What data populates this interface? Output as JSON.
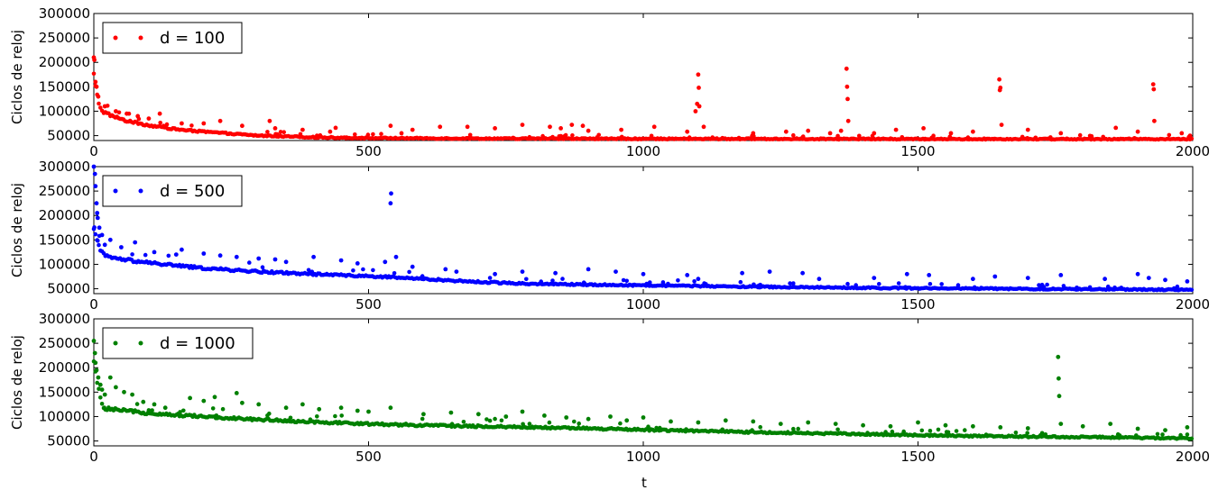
{
  "figure": {
    "xlabel": "t"
  },
  "chart_data": [
    {
      "type": "scatter",
      "ylabel": "Ciclos de reloj",
      "xlim": [
        0,
        2000
      ],
      "ylim": [
        40000,
        300000
      ],
      "xticks": [
        0,
        500,
        1000,
        1500,
        2000
      ],
      "yticks": [
        50000,
        100000,
        150000,
        200000,
        250000,
        300000
      ],
      "series": [
        {
          "name": "d = 100",
          "color": "#ff0000",
          "trend": [
            [
              0,
              175000
            ],
            [
              3,
              150000
            ],
            [
              8,
              120000
            ],
            [
              15,
              100000
            ],
            [
              30,
              92000
            ],
            [
              60,
              80000
            ],
            [
              100,
              71000
            ],
            [
              150,
              63000
            ],
            [
              200,
              58000
            ],
            [
              250,
              54000
            ],
            [
              300,
              50000
            ],
            [
              400,
              46500
            ],
            [
              500,
              45000
            ],
            [
              700,
              44000
            ],
            [
              1000,
              43500
            ],
            [
              1500,
              43000
            ],
            [
              2000,
              43000
            ]
          ],
          "outliers": [
            [
              0,
              210000
            ],
            [
              1,
              205000
            ],
            [
              3,
              160000
            ],
            [
              5,
              150000
            ],
            [
              8,
              130000
            ],
            [
              20,
              110000
            ],
            [
              40,
              100000
            ],
            [
              60,
              95000
            ],
            [
              80,
              90000
            ],
            [
              100,
              85000
            ],
            [
              120,
              95000
            ],
            [
              160,
              75000
            ],
            [
              200,
              75000
            ],
            [
              230,
              80000
            ],
            [
              270,
              70000
            ],
            [
              320,
              80000
            ],
            [
              330,
              65000
            ],
            [
              380,
              62000
            ],
            [
              430,
              58000
            ],
            [
              440,
              66000
            ],
            [
              540,
              70000
            ],
            [
              560,
              55000
            ],
            [
              580,
              62000
            ],
            [
              630,
              68000
            ],
            [
              680,
              68000
            ],
            [
              730,
              65000
            ],
            [
              780,
              72000
            ],
            [
              830,
              68000
            ],
            [
              850,
              65000
            ],
            [
              870,
              72000
            ],
            [
              890,
              70000
            ],
            [
              900,
              60000
            ],
            [
              960,
              62000
            ],
            [
              1020,
              68000
            ],
            [
              1080,
              58000
            ],
            [
              1095,
              100000
            ],
            [
              1098,
              115000
            ],
            [
              1100,
              175000
            ],
            [
              1101,
              148000
            ],
            [
              1102,
              110000
            ],
            [
              1110,
              68000
            ],
            [
              1200,
              55000
            ],
            [
              1260,
              58000
            ],
            [
              1300,
              60000
            ],
            [
              1340,
              55000
            ],
            [
              1360,
              60000
            ],
            [
              1370,
              187000
            ],
            [
              1371,
              150000
            ],
            [
              1372,
              125000
            ],
            [
              1373,
              80000
            ],
            [
              1420,
              55000
            ],
            [
              1460,
              62000
            ],
            [
              1510,
              65000
            ],
            [
              1560,
              55000
            ],
            [
              1600,
              58000
            ],
            [
              1648,
              165000
            ],
            [
              1649,
              143000
            ],
            [
              1650,
              148000
            ],
            [
              1652,
              72000
            ],
            [
              1700,
              62000
            ],
            [
              1760,
              55000
            ],
            [
              1860,
              66000
            ],
            [
              1900,
              58000
            ],
            [
              1928,
              155000
            ],
            [
              1929,
              145000
            ],
            [
              1930,
              80000
            ],
            [
              1980,
              55000
            ],
            [
              1995,
              50000
            ]
          ]
        }
      ]
    },
    {
      "type": "scatter",
      "ylabel": "Ciclos de reloj",
      "xlim": [
        0,
        2000
      ],
      "ylim": [
        40000,
        300000
      ],
      "xticks": [
        0,
        500,
        1000,
        1500,
        2000
      ],
      "yticks": [
        50000,
        100000,
        150000,
        200000,
        250000,
        300000
      ],
      "series": [
        {
          "name": "d = 500",
          "color": "#0000ff",
          "trend": [
            [
              0,
              170000
            ],
            [
              5,
              150000
            ],
            [
              12,
              130000
            ],
            [
              20,
              117000
            ],
            [
              40,
              112000
            ],
            [
              100,
              103000
            ],
            [
              200,
              92000
            ],
            [
              300,
              85000
            ],
            [
              400,
              80000
            ],
            [
              500,
              76000
            ],
            [
              600,
              70000
            ],
            [
              700,
              64000
            ],
            [
              800,
              60000
            ],
            [
              1000,
              57000
            ],
            [
              1200,
              54000
            ],
            [
              1500,
              51000
            ],
            [
              1800,
              49000
            ],
            [
              2000,
              48000
            ]
          ],
          "outliers": [
            [
              0,
              300000
            ],
            [
              2,
              285000
            ],
            [
              3,
              260000
            ],
            [
              5,
              225000
            ],
            [
              6,
              205000
            ],
            [
              7,
              195000
            ],
            [
              10,
              175000
            ],
            [
              15,
              160000
            ],
            [
              20,
              140000
            ],
            [
              30,
              150000
            ],
            [
              50,
              135000
            ],
            [
              75,
              145000
            ],
            [
              110,
              125000
            ],
            [
              150,
              120000
            ],
            [
              160,
              130000
            ],
            [
              200,
              122000
            ],
            [
              230,
              118000
            ],
            [
              260,
              115000
            ],
            [
              300,
              112000
            ],
            [
              330,
              110000
            ],
            [
              350,
              105000
            ],
            [
              400,
              115000
            ],
            [
              450,
              108000
            ],
            [
              480,
              102000
            ],
            [
              530,
              105000
            ],
            [
              540,
              225000
            ],
            [
              541,
              245000
            ],
            [
              550,
              115000
            ],
            [
              580,
              95000
            ],
            [
              640,
              90000
            ],
            [
              660,
              85000
            ],
            [
              730,
              80000
            ],
            [
              780,
              85000
            ],
            [
              840,
              82000
            ],
            [
              900,
              90000
            ],
            [
              950,
              85000
            ],
            [
              1000,
              80000
            ],
            [
              1080,
              78000
            ],
            [
              1100,
              70000
            ],
            [
              1180,
              82000
            ],
            [
              1230,
              85000
            ],
            [
              1290,
              82000
            ],
            [
              1320,
              70000
            ],
            [
              1420,
              72000
            ],
            [
              1480,
              80000
            ],
            [
              1520,
              78000
            ],
            [
              1600,
              70000
            ],
            [
              1640,
              75000
            ],
            [
              1700,
              72000
            ],
            [
              1760,
              78000
            ],
            [
              1840,
              70000
            ],
            [
              1900,
              80000
            ],
            [
              1920,
              72000
            ],
            [
              1950,
              68000
            ],
            [
              1990,
              65000
            ]
          ]
        }
      ]
    },
    {
      "type": "scatter",
      "ylabel": "Ciclos de reloj",
      "xlim": [
        0,
        2000
      ],
      "ylim": [
        40000,
        300000
      ],
      "xticks": [
        0,
        500,
        1000,
        1500,
        2000
      ],
      "yticks": [
        50000,
        100000,
        150000,
        200000,
        250000,
        300000
      ],
      "series": [
        {
          "name": "d = 1000",
          "color": "#008000",
          "trend": [
            [
              0,
              210000
            ],
            [
              4,
              185000
            ],
            [
              8,
              160000
            ],
            [
              13,
              130000
            ],
            [
              18,
              117000
            ],
            [
              40,
              114000
            ],
            [
              100,
              107000
            ],
            [
              200,
              100000
            ],
            [
              300,
              94000
            ],
            [
              400,
              89000
            ],
            [
              500,
              85000
            ],
            [
              600,
              82000
            ],
            [
              800,
              78000
            ],
            [
              1000,
              73000
            ],
            [
              1200,
              68000
            ],
            [
              1400,
              64000
            ],
            [
              1600,
              60000
            ],
            [
              1800,
              58000
            ],
            [
              2000,
              55000
            ]
          ],
          "outliers": [
            [
              0,
              255000
            ],
            [
              2,
              230000
            ],
            [
              3,
              210000
            ],
            [
              5,
              195000
            ],
            [
              8,
              180000
            ],
            [
              12,
              165000
            ],
            [
              15,
              155000
            ],
            [
              20,
              145000
            ],
            [
              30,
              180000
            ],
            [
              40,
              160000
            ],
            [
              55,
              150000
            ],
            [
              70,
              145000
            ],
            [
              90,
              130000
            ],
            [
              110,
              125000
            ],
            [
              130,
              118000
            ],
            [
              175,
              138000
            ],
            [
              200,
              132000
            ],
            [
              220,
              140000
            ],
            [
              260,
              148000
            ],
            [
              270,
              128000
            ],
            [
              300,
              125000
            ],
            [
              350,
              118000
            ],
            [
              380,
              125000
            ],
            [
              410,
              115000
            ],
            [
              450,
              118000
            ],
            [
              480,
              112000
            ],
            [
              500,
              110000
            ],
            [
              540,
              118000
            ],
            [
              600,
              105000
            ],
            [
              650,
              108000
            ],
            [
              700,
              105000
            ],
            [
              750,
              100000
            ],
            [
              780,
              110000
            ],
            [
              820,
              102000
            ],
            [
              860,
              98000
            ],
            [
              900,
              95000
            ],
            [
              940,
              100000
            ],
            [
              970,
              92000
            ],
            [
              1000,
              98000
            ],
            [
              1050,
              90000
            ],
            [
              1100,
              88000
            ],
            [
              1150,
              92000
            ],
            [
              1200,
              90000
            ],
            [
              1250,
              85000
            ],
            [
              1300,
              88000
            ],
            [
              1350,
              85000
            ],
            [
              1400,
              82000
            ],
            [
              1450,
              80000
            ],
            [
              1500,
              88000
            ],
            [
              1550,
              82000
            ],
            [
              1600,
              80000
            ],
            [
              1650,
              78000
            ],
            [
              1700,
              76000
            ],
            [
              1755,
              222000
            ],
            [
              1756,
              178000
            ],
            [
              1757,
              142000
            ],
            [
              1760,
              85000
            ],
            [
              1800,
              80000
            ],
            [
              1850,
              85000
            ],
            [
              1900,
              75000
            ],
            [
              1950,
              72000
            ],
            [
              1990,
              78000
            ]
          ]
        }
      ]
    }
  ]
}
